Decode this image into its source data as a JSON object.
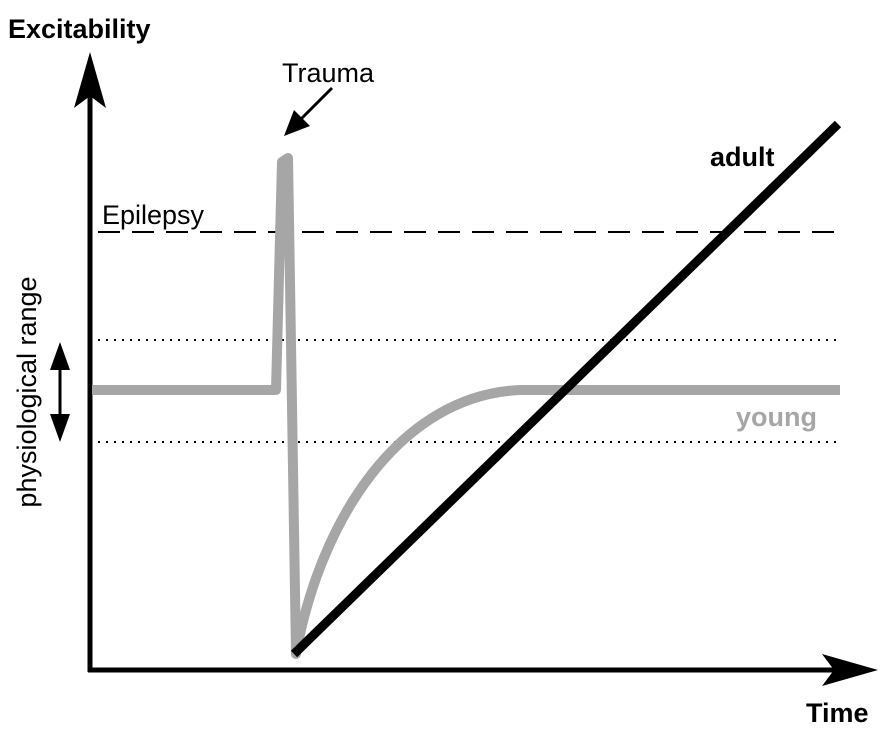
{
  "labels": {
    "y_axis": "Excitability",
    "x_axis": "Time",
    "trauma": "Trauma",
    "epilepsy": "Epilepsy",
    "physiological_range": "physiological range",
    "adult": "adult",
    "young": "young"
  },
  "colors": {
    "axis": "#000000",
    "adult": "#000000",
    "young": "#a6a6a6",
    "epilepsy_line": "#000000",
    "range_lines": "#000000"
  },
  "line_styles": {
    "epilepsy": "dashed",
    "physiological_range_bounds": "dotted"
  }
}
